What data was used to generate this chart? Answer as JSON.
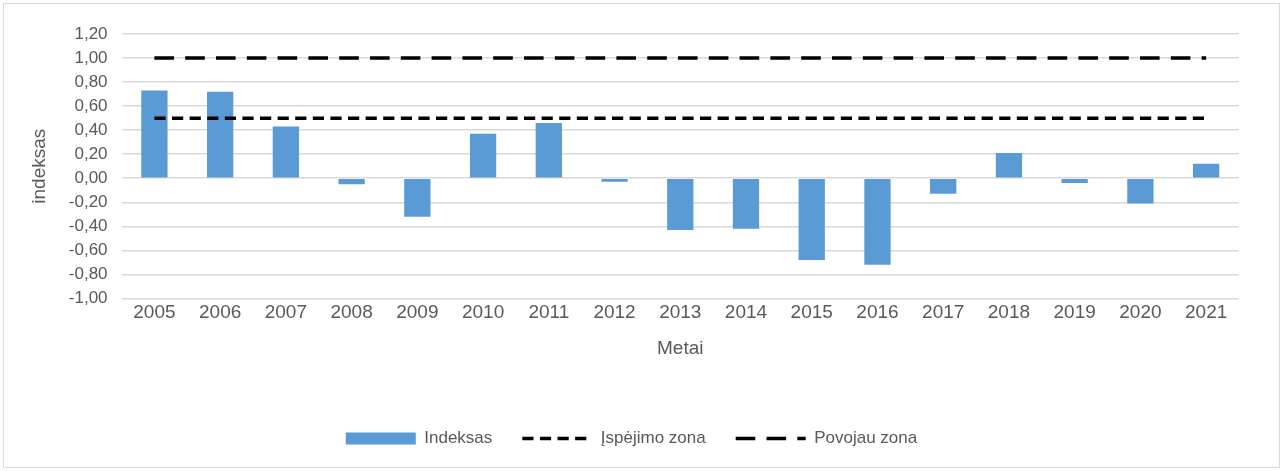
{
  "chart_data": {
    "type": "bar",
    "xlabel": "Metai",
    "ylabel": "indeksas",
    "categories": [
      "2005",
      "2006",
      "2007",
      "2008",
      "2009",
      "2010",
      "2011",
      "2012",
      "2013",
      "2014",
      "2015",
      "2016",
      "2017",
      "2018",
      "2019",
      "2020",
      "2021"
    ],
    "series": [
      {
        "name": "Indeksas",
        "color": "#5b9bd5",
        "values": [
          0.73,
          0.72,
          0.43,
          -0.05,
          -0.32,
          0.37,
          0.46,
          -0.03,
          -0.43,
          -0.42,
          -0.68,
          -0.72,
          -0.13,
          0.21,
          -0.04,
          -0.21,
          0.12
        ]
      },
      {
        "name": "Įspėjimo zona",
        "type": "line",
        "color": "#000000",
        "line_style": "dashed",
        "values": [
          0.5,
          0.5,
          0.5,
          0.5,
          0.5,
          0.5,
          0.5,
          0.5,
          0.5,
          0.5,
          0.5,
          0.5,
          0.5,
          0.5,
          0.5,
          0.5,
          0.5
        ]
      },
      {
        "name": "Povojau zona",
        "type": "line",
        "color": "#000000",
        "line_style": "dashed",
        "values": [
          1,
          1,
          1,
          1,
          1,
          1,
          1,
          1,
          1,
          1,
          1,
          1,
          1,
          1,
          1,
          1,
          1
        ]
      }
    ],
    "ylim": [
      -1,
      1.2
    ],
    "yticks": [
      {
        "value": -1,
        "label": "-1,00"
      },
      {
        "value": -0.8,
        "label": "-0,80"
      },
      {
        "value": -0.6,
        "label": "-0,60"
      },
      {
        "value": -0.4,
        "label": "-0,40"
      },
      {
        "value": -0.2,
        "label": "-0,20"
      },
      {
        "value": 0,
        "label": "0,00"
      },
      {
        "value": 0.2,
        "label": "0,20"
      },
      {
        "value": 0.4,
        "label": "0,40"
      },
      {
        "value": 0.6,
        "label": "0,60"
      },
      {
        "value": 0.8,
        "label": "0,80"
      },
      {
        "value": 1,
        "label": "1,00"
      },
      {
        "value": 1.2,
        "label": "1,20"
      }
    ],
    "grid": "y",
    "legend": "bottom",
    "marker": "none"
  }
}
